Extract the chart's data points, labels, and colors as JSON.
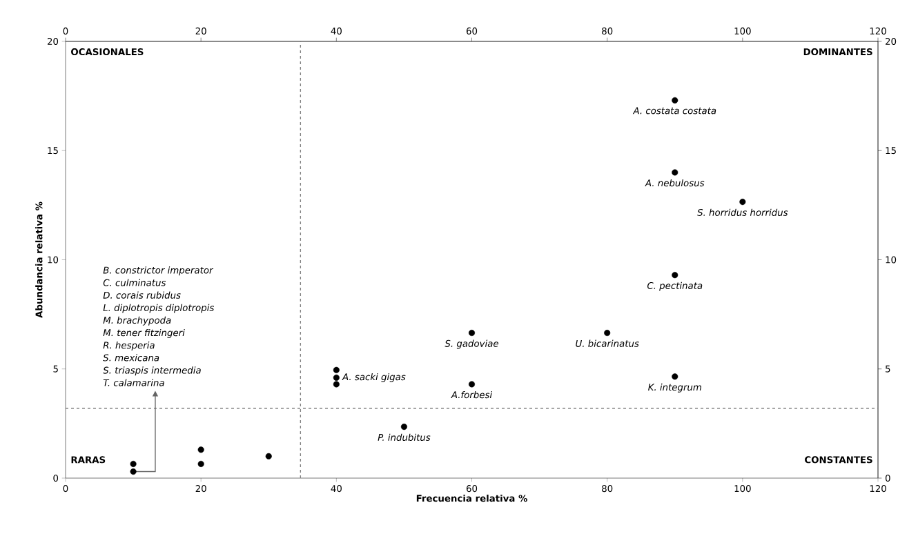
{
  "chart_data": {
    "type": "scatter",
    "xlabel": "Frecuencia relativa %",
    "ylabel": "Abundancia relativa %",
    "x": [
      90,
      90,
      100,
      90,
      60,
      80,
      40,
      40,
      40,
      60,
      90,
      50,
      10,
      10,
      20,
      20,
      30
    ],
    "values": [
      17.3,
      14,
      12.65,
      9.3,
      6.65,
      6.65,
      4.95,
      4.6,
      4.3,
      4.3,
      4.65,
      2.35,
      0.65,
      0.3,
      1.3,
      0.65,
      1.0
    ],
    "color": "#000000",
    "marker": "circle",
    "grid": false,
    "xlim": [
      0,
      120
    ],
    "xticks": [
      0,
      20,
      40,
      60,
      80,
      100,
      120
    ],
    "ylim": [
      0,
      20
    ],
    "yticks": [
      0,
      5,
      10,
      15,
      20
    ],
    "x2lim": [
      0,
      120
    ],
    "x2ticks": [
      0,
      20,
      40,
      60,
      80,
      100,
      120
    ],
    "y2lim": [
      0,
      20
    ],
    "y2ticks": [
      0,
      5,
      10,
      15,
      20
    ],
    "ref_lines": [
      {
        "axis": "x",
        "value": 34.7,
        "color": "#808080",
        "line_style": "dashed"
      },
      {
        "axis": "y",
        "value": 3.2,
        "color": "#808080",
        "line_style": "dashed"
      }
    ],
    "annotations": [
      "OCASIONALES",
      "DOMINANTES",
      "RARAS",
      "CONSTANTES",
      {
        "text": "A. costata costata",
        "x": 90,
        "y": 17.3
      },
      {
        "text": "A. nebulosus",
        "x": 90,
        "y": 14
      },
      {
        "text": "S. horridus horridus",
        "x": 100,
        "y": 12.65
      },
      {
        "text": "C. pectinata",
        "x": 90,
        "y": 9.3
      },
      {
        "text": "S. gadoviae",
        "x": 60,
        "y": 6.65
      },
      {
        "text": "U. bicarinatus",
        "x": 80,
        "y": 6.65
      },
      {
        "text": "A. sacki gigas",
        "x": 40,
        "y": 4.6
      },
      {
        "text": "A.forbesi",
        "x": 60,
        "y": 4.3
      },
      {
        "text": "K. integrum",
        "x": 90,
        "y": 4.65
      },
      {
        "text": "P. indubitus",
        "x": 50,
        "y": 2.35
      },
      "B. constrictor imperator",
      "C. culminatus",
      "D. corais rubidus",
      "L. diplotropis diplotropis",
      "M. brachypoda",
      "M. tener fitzingeri",
      "R. hesperia",
      "S. mexicana",
      "S. triaspis intermedia",
      "T. calamarina"
    ]
  }
}
